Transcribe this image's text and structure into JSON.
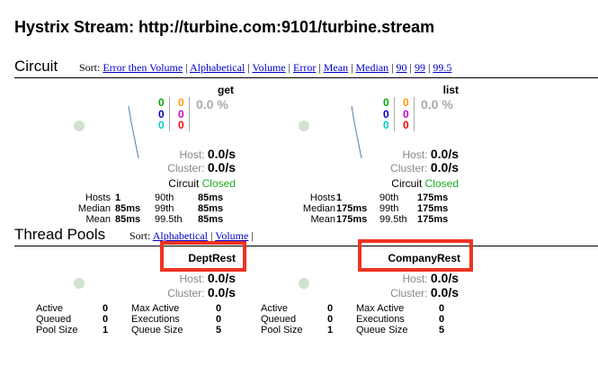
{
  "page_title": "Hystrix Stream: http://turbine.com:9101/turbine.stream",
  "circuit_section": {
    "title": "Circuit",
    "sort_label": "Sort:",
    "sort_links": [
      "Error then Volume",
      "Alphabetical",
      "Volume",
      "Error",
      "Mean",
      "Median",
      "90",
      "99",
      "99.5"
    ],
    "separator": "|"
  },
  "circuits": [
    {
      "name": "get",
      "counts": {
        "success": "0",
        "shortcircuited": "0",
        "badrequest": "0",
        "timeout": "0",
        "rejected": "0",
        "failure": "0"
      },
      "error_pct": "0.0 %",
      "host_label": "Host:",
      "host_rate": "0.0/s",
      "cluster_label": "Cluster:",
      "cluster_rate": "0.0/s",
      "circuit_label": "Circuit",
      "circuit_status": "Closed",
      "stats": {
        "hosts_label": "Hosts",
        "hosts": "1",
        "median_label": "Median",
        "median": "85ms",
        "mean_label": "Mean",
        "mean": "85ms",
        "p90_label": "90th",
        "p90": "85ms",
        "p99_label": "99th",
        "p99": "85ms",
        "p995_label": "99.5th",
        "p995": "85ms"
      }
    },
    {
      "name": "list",
      "counts": {
        "success": "0",
        "shortcircuited": "0",
        "badrequest": "0",
        "timeout": "0",
        "rejected": "0",
        "failure": "0"
      },
      "error_pct": "0.0 %",
      "host_label": "Host:",
      "host_rate": "0.0/s",
      "cluster_label": "Cluster:",
      "cluster_rate": "0.0/s",
      "circuit_label": "Circuit",
      "circuit_status": "Closed",
      "stats": {
        "hosts_label": "Hosts",
        "hosts": "1",
        "median_label": "Median",
        "median": "175ms",
        "mean_label": "Mean",
        "mean": "175ms",
        "p90_label": "90th",
        "p90": "175ms",
        "p99_label": "99th",
        "p99": "175ms",
        "p995_label": "99.5th",
        "p995": "175ms"
      }
    }
  ],
  "thread_pool_section": {
    "title": "Thread Pools",
    "sort_label": "Sort:",
    "sort_links": [
      "Alphabetical",
      "Volume"
    ],
    "separator": "|"
  },
  "thread_pools": [
    {
      "name": "DeptRest",
      "host_label": "Host:",
      "host_rate": "0.0/s",
      "cluster_label": "Cluster:",
      "cluster_rate": "0.0/s",
      "active_label": "Active",
      "active": "0",
      "queued_label": "Queued",
      "queued": "0",
      "pool_size_label": "Pool Size",
      "pool_size": "1",
      "max_active_label": "Max Active",
      "max_active": "0",
      "executions_label": "Executions",
      "executions": "0",
      "queue_size_label": "Queue Size",
      "queue_size": "5"
    },
    {
      "name": "CompanyRest",
      "host_label": "Host:",
      "host_rate": "0.0/s",
      "cluster_label": "Cluster:",
      "cluster_rate": "0.0/s",
      "active_label": "Active",
      "active": "0",
      "queued_label": "Queued",
      "queued": "0",
      "pool_size_label": "Pool Size",
      "pool_size": "1",
      "max_active_label": "Max Active",
      "max_active": "0",
      "executions_label": "Executions",
      "executions": "0",
      "queue_size_label": "Queue Size",
      "queue_size": "5"
    }
  ],
  "colors": {
    "success": "#00aa00",
    "shortcircuited": "#0000cc",
    "badrequest": "#00cccc",
    "timeout": "#ff9900",
    "rejected": "#cc00cc",
    "failure": "#ff0000",
    "closed": "#22aa22",
    "highlight_box": "#ee3322",
    "link": "#0000cc"
  }
}
